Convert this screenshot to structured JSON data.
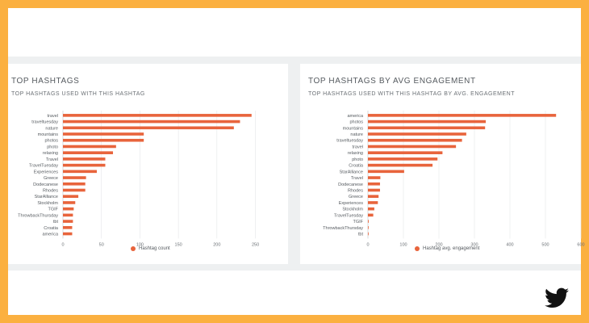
{
  "accent": "#e8643c",
  "panels": {
    "left": {
      "title": "TOP HASHTAGS",
      "subtitle": "TOP HASHTAGS USED WITH THIS HASHTAG",
      "legend": "Hashtag count"
    },
    "right": {
      "title": "TOP HASHTAGS BY AVG ENGAGEMENT",
      "subtitle": "TOP HASHTAGS USED WITH THIS HASHTAG BY AVG. ENGAGEMENT",
      "legend": "Hashtag avg. engagement"
    }
  },
  "chart_data": [
    {
      "type": "bar",
      "orientation": "horizontal",
      "categories": [
        "travel",
        "traveltuesday",
        "nature",
        "mountains",
        "photos",
        "photo",
        "relaxing",
        "Travel",
        "TravelTuesday",
        "Experiences",
        "Greece",
        "Dodecanese",
        "Rhodes",
        "StarAlliance",
        "Stockholm",
        "TGIF",
        "ThrowbackThursday",
        "tbt",
        "Croatia",
        "america"
      ],
      "series": [
        {
          "name": "Hashtag count",
          "values": [
            245,
            230,
            222,
            105,
            105,
            69,
            65,
            55,
            55,
            44,
            30,
            29,
            29,
            20,
            16,
            14,
            13,
            13,
            12,
            12
          ]
        }
      ],
      "xticks": [
        0,
        50,
        100,
        150,
        200,
        250
      ],
      "xlim": [
        0,
        262
      ],
      "grid": "vertical",
      "legend_position": "bottom"
    },
    {
      "type": "bar",
      "orientation": "horizontal",
      "categories": [
        "america",
        "photos",
        "mountains",
        "nature",
        "traveltuesday",
        "travel",
        "relaxing",
        "photo",
        "Croatia",
        "StarAlliance",
        "Travel",
        "Dodecanese",
        "Rhodes",
        "Greece",
        "Experiences",
        "Stockholm",
        "TravelTuesday",
        "TGIF",
        "ThrowbackThursday",
        "tbt"
      ],
      "series": [
        {
          "name": "Hashtag avg. engagement",
          "values": [
            530,
            332,
            330,
            277,
            265,
            248,
            210,
            196,
            182,
            102,
            35,
            34,
            34,
            30,
            28,
            18,
            15,
            2,
            1,
            1
          ]
        }
      ],
      "xticks": [
        0,
        100,
        200,
        300,
        400,
        500,
        600
      ],
      "xlim": [
        0,
        600
      ],
      "grid": "vertical",
      "legend_position": "bottom"
    }
  ]
}
